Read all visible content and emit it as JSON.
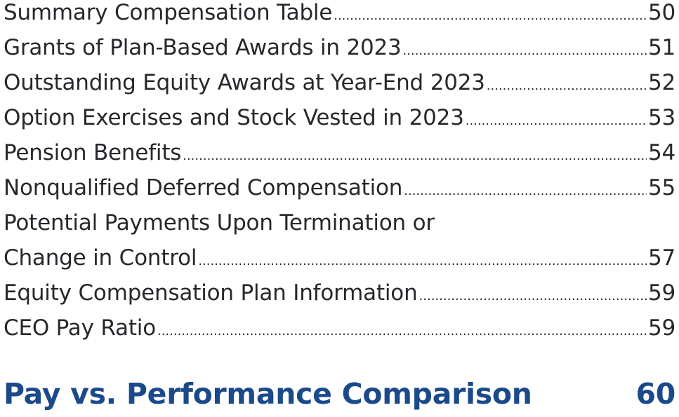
{
  "toc": {
    "entries": [
      {
        "title": "Summary Compensation Table",
        "page": "50"
      },
      {
        "title": "Grants of Plan-Based Awards in 2023",
        "page": "51"
      },
      {
        "title": "Outstanding Equity Awards at Year-End 2023",
        "page": "52"
      },
      {
        "title": "Option Exercises and Stock Vested in 2023",
        "page": "53"
      },
      {
        "title": "Pension Benefits",
        "page": "54"
      },
      {
        "title": "Nonqualified Deferred Compensation",
        "page": "55"
      },
      {
        "title_line1": "Potential Payments Upon Termination or",
        "title_line2": "Change in Control",
        "page": "57"
      },
      {
        "title": "Equity Compensation Plan Information",
        "page": "59"
      },
      {
        "title": "CEO Pay Ratio",
        "page": "59"
      }
    ]
  },
  "section": {
    "title": "Pay vs. Performance Comparison",
    "page": "60"
  },
  "colors": {
    "text": "#26282c",
    "section_heading": "#1b4a8a"
  }
}
